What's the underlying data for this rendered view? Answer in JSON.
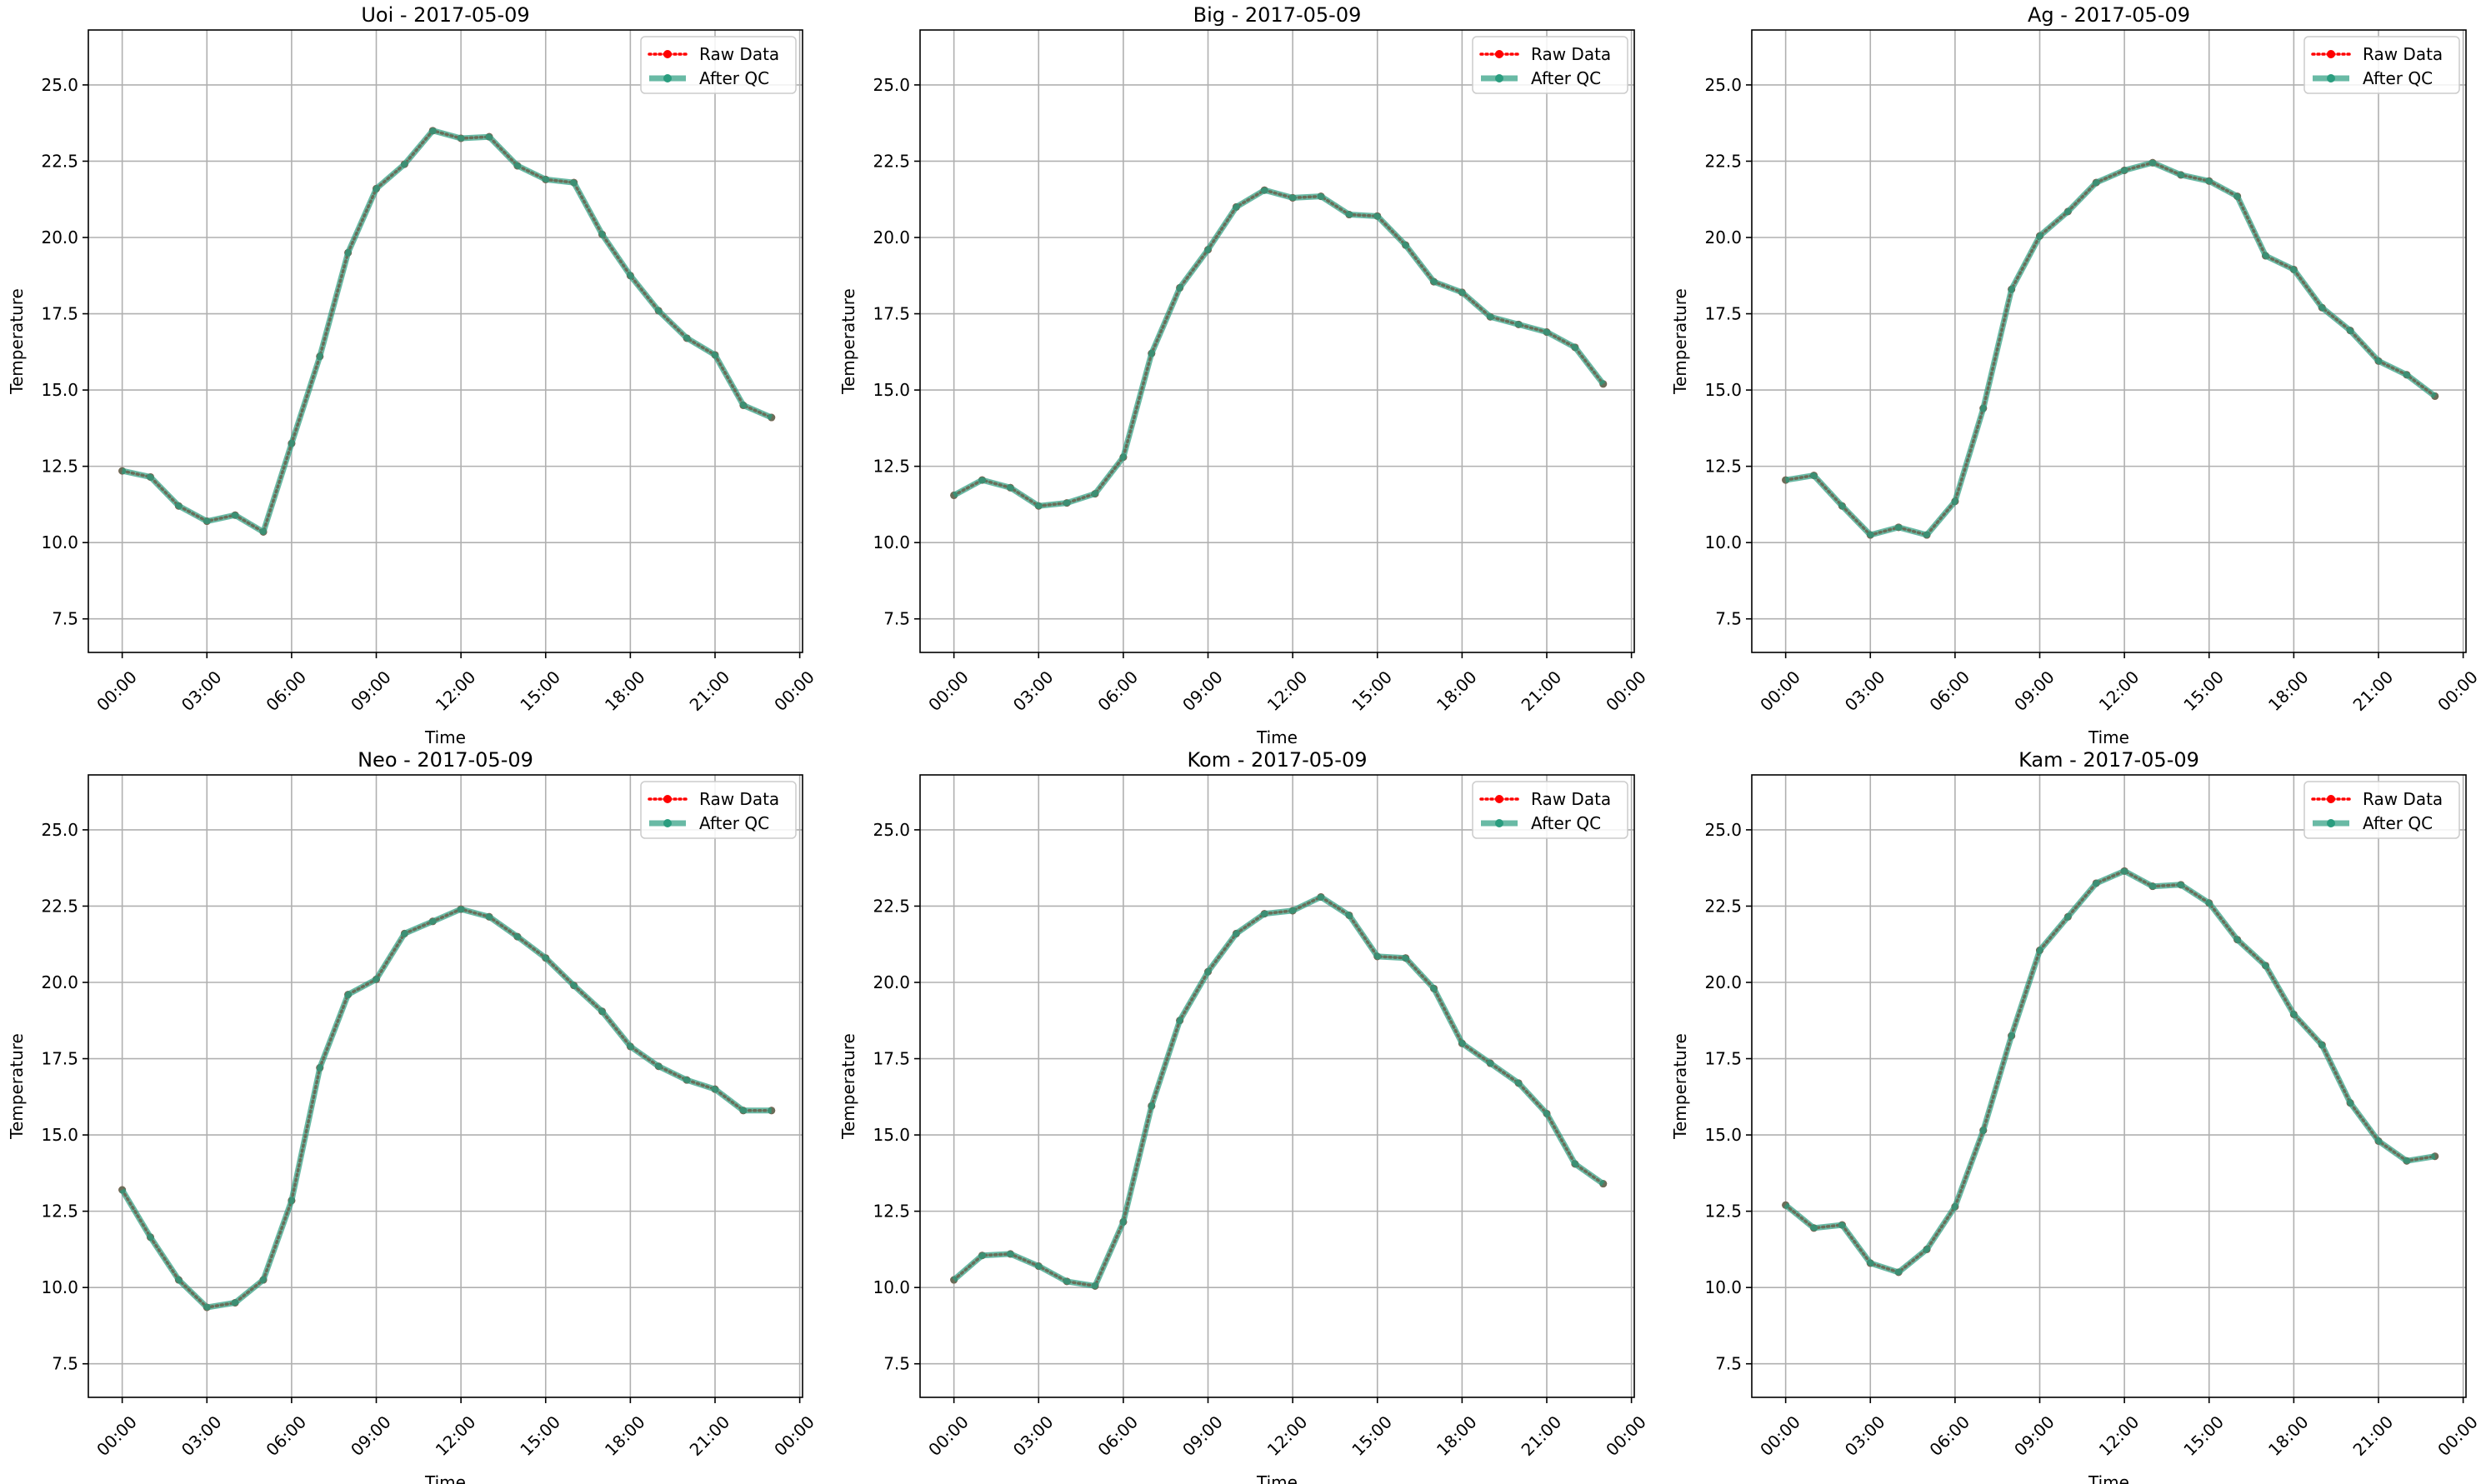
{
  "chart_data": [
    {
      "type": "line",
      "title": "Uoi - 2017-05-09",
      "xlabel": "Time",
      "ylabel": "Temperature",
      "xlim": [
        -1.2,
        24.1
      ],
      "ylim": [
        6.4,
        26.8
      ],
      "x_ticks": [
        0,
        3,
        6,
        9,
        12,
        15,
        18,
        21,
        24
      ],
      "x_tick_labels": [
        "00:00",
        "03:00",
        "06:00",
        "09:00",
        "12:00",
        "15:00",
        "18:00",
        "21:00",
        "00:00"
      ],
      "y_ticks": [
        7.5,
        10.0,
        12.5,
        15.0,
        17.5,
        20.0,
        22.5,
        25.0
      ],
      "y_tick_labels": [
        "7.5",
        "10.0",
        "12.5",
        "15.0",
        "17.5",
        "20.0",
        "22.5",
        "25.0"
      ],
      "grid": true,
      "legend_position": "top-right",
      "x": [
        0,
        1,
        2,
        3,
        4,
        5,
        6,
        7,
        8,
        9,
        10,
        11,
        12,
        13,
        14,
        15,
        16,
        17,
        18,
        19,
        20,
        21,
        22,
        23
      ],
      "series": [
        {
          "name": "Raw Data",
          "color": "#ff0000",
          "values": [
            12.35,
            12.15,
            11.2,
            10.7,
            10.9,
            10.35,
            13.25,
            16.1,
            19.5,
            21.6,
            22.4,
            23.5,
            23.25,
            23.3,
            22.35,
            21.9,
            21.8,
            20.1,
            18.75,
            17.6,
            16.7,
            16.15,
            14.5,
            14.1
          ]
        },
        {
          "name": "After QC",
          "color": "#2a9d7f",
          "values": [
            12.35,
            12.15,
            11.2,
            10.7,
            10.9,
            10.35,
            13.25,
            16.1,
            19.5,
            21.6,
            22.4,
            23.5,
            23.25,
            23.3,
            22.35,
            21.9,
            21.8,
            20.1,
            18.75,
            17.6,
            16.7,
            16.15,
            14.5,
            14.1
          ]
        }
      ]
    },
    {
      "type": "line",
      "title": "Big - 2017-05-09",
      "xlabel": "Time",
      "ylabel": "Temperature",
      "xlim": [
        -1.2,
        24.1
      ],
      "ylim": [
        6.4,
        26.8
      ],
      "x_ticks": [
        0,
        3,
        6,
        9,
        12,
        15,
        18,
        21,
        24
      ],
      "x_tick_labels": [
        "00:00",
        "03:00",
        "06:00",
        "09:00",
        "12:00",
        "15:00",
        "18:00",
        "21:00",
        "00:00"
      ],
      "y_ticks": [
        7.5,
        10.0,
        12.5,
        15.0,
        17.5,
        20.0,
        22.5,
        25.0
      ],
      "y_tick_labels": [
        "7.5",
        "10.0",
        "12.5",
        "15.0",
        "17.5",
        "20.0",
        "22.5",
        "25.0"
      ],
      "grid": true,
      "legend_position": "top-right",
      "x": [
        0,
        1,
        2,
        3,
        4,
        5,
        6,
        7,
        8,
        9,
        10,
        11,
        12,
        13,
        14,
        15,
        16,
        17,
        18,
        19,
        20,
        21,
        22,
        23
      ],
      "series": [
        {
          "name": "Raw Data",
          "color": "#ff0000",
          "values": [
            11.55,
            12.05,
            11.8,
            11.2,
            11.3,
            11.6,
            12.8,
            16.2,
            18.35,
            19.6,
            21.0,
            21.55,
            21.3,
            21.35,
            20.75,
            20.7,
            19.75,
            18.55,
            18.2,
            17.4,
            17.15,
            16.9,
            16.4,
            15.2
          ]
        },
        {
          "name": "After QC",
          "color": "#2a9d7f",
          "values": [
            11.55,
            12.05,
            11.8,
            11.2,
            11.3,
            11.6,
            12.8,
            16.2,
            18.35,
            19.6,
            21.0,
            21.55,
            21.3,
            21.35,
            20.75,
            20.7,
            19.75,
            18.55,
            18.2,
            17.4,
            17.15,
            16.9,
            16.4,
            15.2
          ]
        }
      ]
    },
    {
      "type": "line",
      "title": "Ag - 2017-05-09",
      "xlabel": "Time",
      "ylabel": "Temperature",
      "xlim": [
        -1.2,
        24.1
      ],
      "ylim": [
        6.4,
        26.8
      ],
      "x_ticks": [
        0,
        3,
        6,
        9,
        12,
        15,
        18,
        21,
        24
      ],
      "x_tick_labels": [
        "00:00",
        "03:00",
        "06:00",
        "09:00",
        "12:00",
        "15:00",
        "18:00",
        "21:00",
        "00:00"
      ],
      "y_ticks": [
        7.5,
        10.0,
        12.5,
        15.0,
        17.5,
        20.0,
        22.5,
        25.0
      ],
      "y_tick_labels": [
        "7.5",
        "10.0",
        "12.5",
        "15.0",
        "17.5",
        "20.0",
        "22.5",
        "25.0"
      ],
      "grid": true,
      "legend_position": "top-right",
      "x": [
        0,
        1,
        2,
        3,
        4,
        5,
        6,
        7,
        8,
        9,
        10,
        11,
        12,
        13,
        14,
        15,
        16,
        17,
        18,
        19,
        20,
        21,
        22,
        23
      ],
      "series": [
        {
          "name": "Raw Data",
          "color": "#ff0000",
          "values": [
            12.05,
            12.2,
            11.2,
            10.25,
            10.5,
            10.25,
            11.35,
            14.4,
            18.3,
            20.05,
            20.85,
            21.8,
            22.2,
            22.45,
            22.05,
            21.85,
            21.35,
            19.4,
            18.95,
            17.7,
            16.95,
            15.95,
            15.5,
            14.8
          ]
        },
        {
          "name": "After QC",
          "color": "#2a9d7f",
          "values": [
            12.05,
            12.2,
            11.2,
            10.25,
            10.5,
            10.25,
            11.35,
            14.4,
            18.3,
            20.05,
            20.85,
            21.8,
            22.2,
            22.45,
            22.05,
            21.85,
            21.35,
            19.4,
            18.95,
            17.7,
            16.95,
            15.95,
            15.5,
            14.8
          ]
        }
      ]
    },
    {
      "type": "line",
      "title": "Neo - 2017-05-09",
      "xlabel": "Time",
      "ylabel": "Temperature",
      "xlim": [
        -1.2,
        24.1
      ],
      "ylim": [
        6.4,
        26.8
      ],
      "x_ticks": [
        0,
        3,
        6,
        9,
        12,
        15,
        18,
        21,
        24
      ],
      "x_tick_labels": [
        "00:00",
        "03:00",
        "06:00",
        "09:00",
        "12:00",
        "15:00",
        "18:00",
        "21:00",
        "00:00"
      ],
      "y_ticks": [
        7.5,
        10.0,
        12.5,
        15.0,
        17.5,
        20.0,
        22.5,
        25.0
      ],
      "y_tick_labels": [
        "7.5",
        "10.0",
        "12.5",
        "15.0",
        "17.5",
        "20.0",
        "22.5",
        "25.0"
      ],
      "grid": true,
      "legend_position": "top-right",
      "x": [
        0,
        1,
        2,
        3,
        4,
        5,
        6,
        7,
        8,
        9,
        10,
        11,
        12,
        13,
        14,
        15,
        16,
        17,
        18,
        19,
        20,
        21,
        22,
        23
      ],
      "series": [
        {
          "name": "Raw Data",
          "color": "#ff0000",
          "values": [
            13.2,
            11.65,
            10.25,
            9.35,
            9.5,
            10.25,
            12.85,
            17.2,
            19.6,
            20.1,
            21.6,
            22.0,
            22.4,
            22.15,
            21.5,
            20.8,
            19.9,
            19.05,
            17.9,
            17.25,
            16.8,
            16.5,
            15.8,
            15.8
          ]
        },
        {
          "name": "After QC",
          "color": "#2a9d7f",
          "values": [
            13.2,
            11.65,
            10.25,
            9.35,
            9.5,
            10.25,
            12.85,
            17.2,
            19.6,
            20.1,
            21.6,
            22.0,
            22.4,
            22.15,
            21.5,
            20.8,
            19.9,
            19.05,
            17.9,
            17.25,
            16.8,
            16.5,
            15.8,
            15.8
          ]
        }
      ]
    },
    {
      "type": "line",
      "title": "Kom - 2017-05-09",
      "xlabel": "Time",
      "ylabel": "Temperature",
      "xlim": [
        -1.2,
        24.1
      ],
      "ylim": [
        6.4,
        26.8
      ],
      "x_ticks": [
        0,
        3,
        6,
        9,
        12,
        15,
        18,
        21,
        24
      ],
      "x_tick_labels": [
        "00:00",
        "03:00",
        "06:00",
        "09:00",
        "12:00",
        "15:00",
        "18:00",
        "21:00",
        "00:00"
      ],
      "y_ticks": [
        7.5,
        10.0,
        12.5,
        15.0,
        17.5,
        20.0,
        22.5,
        25.0
      ],
      "y_tick_labels": [
        "7.5",
        "10.0",
        "12.5",
        "15.0",
        "17.5",
        "20.0",
        "22.5",
        "25.0"
      ],
      "grid": true,
      "legend_position": "top-right",
      "x": [
        0,
        1,
        2,
        3,
        4,
        5,
        6,
        7,
        8,
        9,
        10,
        11,
        12,
        13,
        14,
        15,
        16,
        17,
        18,
        19,
        20,
        21,
        22,
        23
      ],
      "series": [
        {
          "name": "Raw Data",
          "color": "#ff0000",
          "values": [
            10.25,
            11.05,
            11.1,
            10.7,
            10.2,
            10.05,
            12.15,
            15.95,
            18.75,
            20.35,
            21.6,
            22.25,
            22.35,
            22.8,
            22.2,
            20.85,
            20.8,
            19.8,
            18.0,
            17.35,
            16.7,
            15.7,
            14.05,
            13.4
          ]
        },
        {
          "name": "After QC",
          "color": "#2a9d7f",
          "values": [
            10.25,
            11.05,
            11.1,
            10.7,
            10.2,
            10.05,
            12.15,
            15.95,
            18.75,
            20.35,
            21.6,
            22.25,
            22.35,
            22.8,
            22.2,
            20.85,
            20.8,
            19.8,
            18.0,
            17.35,
            16.7,
            15.7,
            14.05,
            13.4
          ]
        }
      ]
    },
    {
      "type": "line",
      "title": "Kam - 2017-05-09",
      "xlabel": "Time",
      "ylabel": "Temperature",
      "xlim": [
        -1.2,
        24.1
      ],
      "ylim": [
        6.4,
        26.8
      ],
      "x_ticks": [
        0,
        3,
        6,
        9,
        12,
        15,
        18,
        21,
        24
      ],
      "x_tick_labels": [
        "00:00",
        "03:00",
        "06:00",
        "09:00",
        "12:00",
        "15:00",
        "18:00",
        "21:00",
        "00:00"
      ],
      "y_ticks": [
        7.5,
        10.0,
        12.5,
        15.0,
        17.5,
        20.0,
        22.5,
        25.0
      ],
      "y_tick_labels": [
        "7.5",
        "10.0",
        "12.5",
        "15.0",
        "17.5",
        "20.0",
        "22.5",
        "25.0"
      ],
      "grid": true,
      "legend_position": "top-right",
      "x": [
        0,
        1,
        2,
        3,
        4,
        5,
        6,
        7,
        8,
        9,
        10,
        11,
        12,
        13,
        14,
        15,
        16,
        17,
        18,
        19,
        20,
        21,
        22,
        23
      ],
      "series": [
        {
          "name": "Raw Data",
          "color": "#ff0000",
          "values": [
            12.7,
            11.95,
            12.05,
            10.8,
            10.5,
            11.25,
            12.65,
            15.15,
            18.25,
            21.05,
            22.15,
            23.25,
            23.65,
            23.15,
            23.2,
            22.6,
            21.4,
            20.55,
            18.95,
            17.95,
            16.05,
            14.8,
            14.15,
            14.3
          ]
        },
        {
          "name": "After QC",
          "color": "#2a9d7f",
          "values": [
            12.7,
            11.95,
            12.05,
            10.8,
            10.5,
            11.25,
            12.65,
            15.15,
            18.25,
            21.05,
            22.15,
            23.25,
            23.65,
            23.15,
            23.2,
            22.6,
            21.4,
            20.55,
            18.95,
            17.95,
            16.05,
            14.8,
            14.15,
            14.3
          ]
        }
      ]
    }
  ]
}
